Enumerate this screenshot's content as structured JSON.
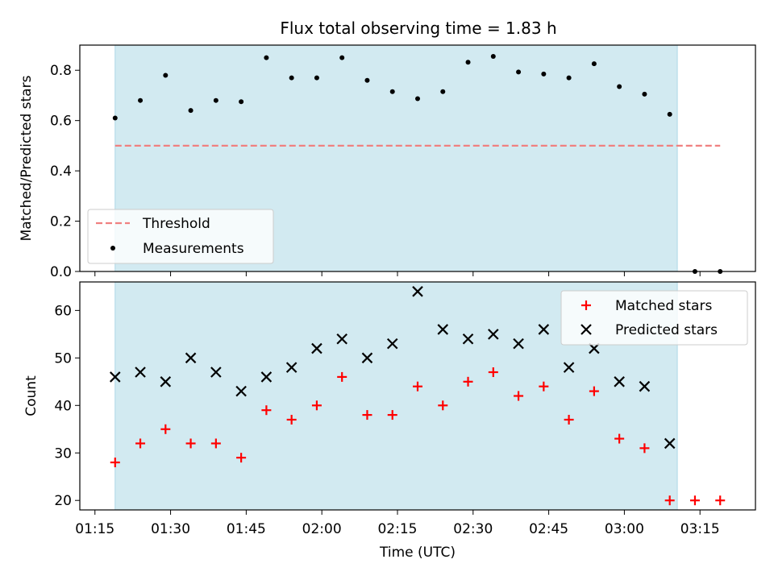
{
  "chart_data": {
    "title": "Flux total observing time = 1.83 h",
    "xlabel": "Time (UTC)",
    "x_unit": "minutes",
    "x_range": [
      72,
      206
    ],
    "x_ticks": [
      {
        "value": 75,
        "label": "01:15"
      },
      {
        "value": 90,
        "label": "01:30"
      },
      {
        "value": 105,
        "label": "01:45"
      },
      {
        "value": 120,
        "label": "02:00"
      },
      {
        "value": 135,
        "label": "02:15"
      },
      {
        "value": 150,
        "label": "02:30"
      },
      {
        "value": 165,
        "label": "02:45"
      },
      {
        "value": 180,
        "label": "03:00"
      },
      {
        "value": 195,
        "label": "03:15"
      }
    ],
    "observing_window": [
      79,
      190.5
    ],
    "observing_window_color": "#add8e6",
    "panels": [
      {
        "type": "scatter",
        "ylabel": "Matched/Predicted stars",
        "ylim": [
          0,
          0.9
        ],
        "y_ticks": [
          "0.0",
          "0.2",
          "0.4",
          "0.6",
          "0.8"
        ],
        "threshold": {
          "name": "Threshold",
          "value": 0.5,
          "x_range": [
            79,
            199
          ],
          "color": "#f08080"
        },
        "series": [
          {
            "name": "Measurements",
            "marker": "dot",
            "color": "#000000",
            "x": [
              79,
              84,
              89,
              94,
              99,
              104,
              109,
              114,
              119,
              124,
              129,
              134,
              139,
              144,
              149,
              154,
              159,
              164,
              169,
              174,
              179,
              184,
              189,
              194,
              199
            ],
            "y": [
              0.61,
              0.68,
              0.78,
              0.64,
              0.68,
              0.675,
              0.85,
              0.77,
              0.77,
              0.85,
              0.76,
              0.715,
              0.687,
              0.715,
              0.832,
              0.855,
              0.793,
              0.785,
              0.77,
              0.826,
              0.735,
              0.705,
              0.625,
              0.0,
              0.0
            ]
          }
        ],
        "legend": {
          "position": "lower-left",
          "entries": [
            "Threshold",
            "Measurements"
          ]
        }
      },
      {
        "type": "scatter",
        "ylabel": "Count",
        "ylim": [
          18,
          66
        ],
        "y_ticks": [
          "20",
          "30",
          "40",
          "50",
          "60"
        ],
        "series": [
          {
            "name": "Matched stars",
            "marker": "plus",
            "color": "#ff0000",
            "x": [
              79,
              84,
              89,
              94,
              99,
              104,
              109,
              114,
              119,
              124,
              129,
              134,
              139,
              144,
              149,
              154,
              159,
              164,
              169,
              174,
              179,
              184,
              189,
              194,
              199
            ],
            "y": [
              28,
              32,
              35,
              32,
              32,
              29,
              39,
              37,
              40,
              46,
              38,
              38,
              44,
              40,
              45,
              47,
              42,
              44,
              37,
              43,
              33,
              31,
              20,
              20,
              20
            ]
          },
          {
            "name": "Predicted stars",
            "marker": "x",
            "color": "#000000",
            "x": [
              79,
              84,
              89,
              94,
              99,
              104,
              109,
              114,
              119,
              124,
              129,
              134,
              139,
              144,
              149,
              154,
              159,
              164,
              169,
              174,
              179,
              184,
              189
            ],
            "y": [
              46,
              47,
              45,
              50,
              47,
              43,
              46,
              48,
              52,
              54,
              50,
              53,
              64,
              56,
              54,
              55,
              53,
              56,
              48,
              52,
              45,
              44,
              32
            ]
          }
        ],
        "legend": {
          "position": "upper-right",
          "entries": [
            "Matched stars",
            "Predicted stars"
          ]
        }
      }
    ]
  }
}
